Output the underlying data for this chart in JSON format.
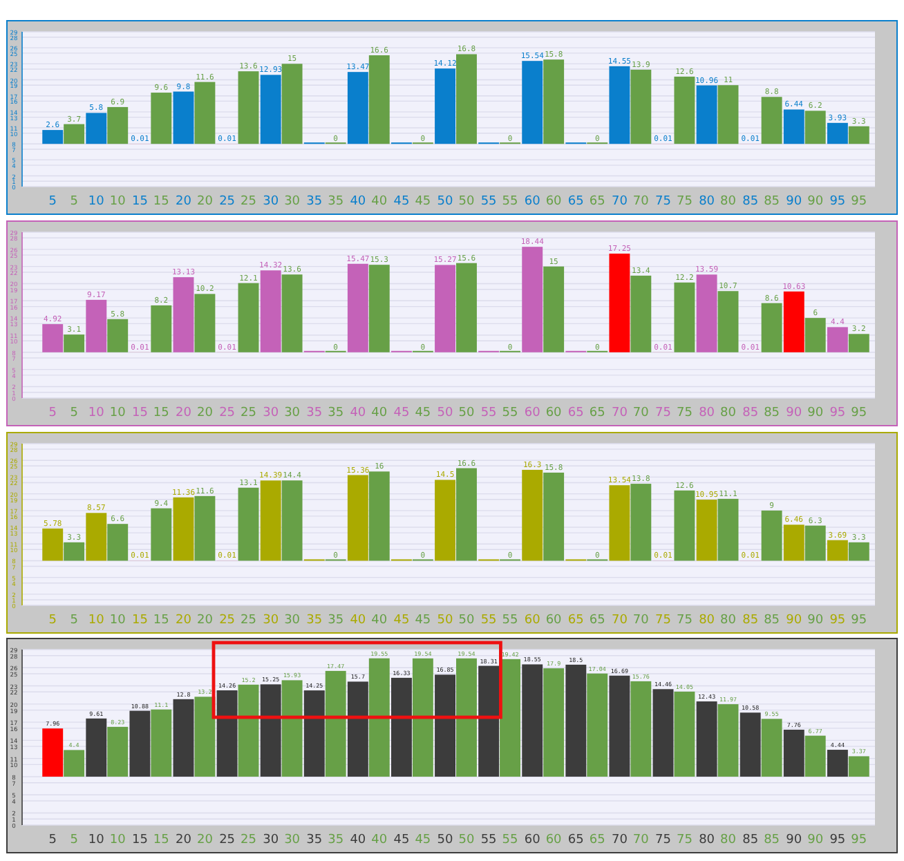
{
  "chart_data": [
    {
      "type": "bar",
      "categories": [
        "5",
        "10",
        "15",
        "20",
        "25",
        "30",
        "35",
        "40",
        "45",
        "50",
        "55",
        "60",
        "65",
        "70",
        "75",
        "80",
        "85",
        "90",
        "95"
      ],
      "ylim": [
        0,
        29
      ],
      "yticks": [
        0,
        1,
        2,
        4,
        5,
        7,
        8,
        10,
        11,
        13,
        14,
        16,
        17,
        19,
        20,
        22,
        23,
        25,
        26,
        28,
        29
      ],
      "grid": "y",
      "series": [
        {
          "color": "#0a7fcc",
          "colors": [
            "#0a7fcc",
            "#0a7fcc",
            "#ff0000",
            "#0a7fcc",
            "#ff0000",
            "#0a7fcc",
            "#0a7fcc",
            "#0a7fcc",
            "#0a7fcc",
            "#0a7fcc",
            "#0a7fcc",
            "#0a7fcc",
            "#0a7fcc",
            "#0a7fcc",
            "#ff0000",
            "#0a7fcc",
            "#ff0000",
            "#0a7fcc",
            "#0a7fcc"
          ],
          "base": [
            8,
            8,
            8,
            8,
            8,
            8,
            8,
            8,
            8,
            8,
            8,
            8,
            8,
            8,
            8,
            8,
            8,
            8,
            8
          ],
          "values": [
            2.6,
            5.8,
            0.01,
            9.8,
            0.01,
            12.93,
            0,
            13.47,
            0,
            14.12,
            0,
            15.54,
            0,
            14.55,
            0.01,
            10.96,
            0.01,
            6.44,
            3.93
          ],
          "value_labels": [
            "2.6",
            "5.8",
            "0.01",
            "9.8",
            "0.01",
            "12.93",
            null,
            "13.47",
            null,
            "14.12",
            null,
            "15.54",
            null,
            "14.55",
            "0.01",
            "10.96",
            "0.01",
            "6.44",
            "3.93"
          ]
        },
        {
          "color": "#67a047",
          "base": [
            8,
            8,
            8,
            8,
            8,
            8,
            8,
            8,
            8,
            8,
            8,
            8,
            8,
            8,
            8,
            8,
            8,
            8,
            8
          ],
          "values": [
            3.7,
            6.9,
            9.6,
            11.6,
            13.6,
            15,
            0,
            16.6,
            0,
            16.8,
            0,
            15.8,
            0,
            13.9,
            12.6,
            11,
            8.8,
            6.2,
            3.3
          ],
          "value_labels": [
            "3.7",
            "6.9",
            "9.6",
            "11.6",
            "13.6",
            "15",
            "0",
            "16.6",
            "0",
            "16.8",
            "0",
            "15.8",
            "0",
            "13.9",
            "12.6",
            "11",
            "8.8",
            "6.2",
            "3.3"
          ]
        }
      ]
    },
    {
      "type": "bar",
      "categories": [
        "5",
        "10",
        "15",
        "20",
        "25",
        "30",
        "35",
        "40",
        "45",
        "50",
        "55",
        "60",
        "65",
        "70",
        "75",
        "80",
        "85",
        "90",
        "95"
      ],
      "ylim": [
        0,
        29
      ],
      "yticks": [
        0,
        1,
        2,
        4,
        5,
        7,
        8,
        10,
        11,
        13,
        14,
        16,
        17,
        19,
        20,
        22,
        23,
        25,
        26,
        28,
        29
      ],
      "grid": "y",
      "series": [
        {
          "color": "#c462b8",
          "colors": [
            "#c462b8",
            "#c462b8",
            "#ff0000",
            "#c462b8",
            "#ff0000",
            "#c462b8",
            "#c462b8",
            "#c462b8",
            "#c462b8",
            "#c462b8",
            "#c462b8",
            "#c462b8",
            "#c462b8",
            "#ff0000",
            "#ff0000",
            "#c462b8",
            "#ff0000",
            "#ff0000",
            "#c462b8"
          ],
          "base": [
            8,
            8,
            8,
            8,
            8,
            8,
            8,
            8,
            8,
            8,
            8,
            8,
            8,
            8,
            8,
            8,
            8,
            8,
            8
          ],
          "values": [
            4.92,
            9.17,
            0.01,
            13.13,
            0.01,
            14.32,
            0,
            15.47,
            0,
            15.27,
            0,
            18.44,
            0,
            17.25,
            0.01,
            13.59,
            0.01,
            10.63,
            4.4
          ],
          "value_labels": [
            "4.92",
            "9.17",
            "0.01",
            "13.13",
            "0.01",
            "14.32",
            null,
            "15.47",
            null,
            "15.27",
            null,
            "18.44",
            null,
            "17.25",
            "0.01",
            "13.59",
            "0.01",
            "10.63",
            "4.4"
          ]
        },
        {
          "color": "#67a047",
          "base": [
            8,
            8,
            8,
            8,
            8,
            8,
            8,
            8,
            8,
            8,
            8,
            8,
            8,
            8,
            8,
            8,
            8,
            8,
            8
          ],
          "values": [
            3.1,
            5.8,
            8.2,
            10.2,
            12.1,
            13.6,
            0,
            15.3,
            0,
            15.6,
            0,
            15,
            0,
            13.4,
            12.2,
            10.7,
            8.6,
            6,
            3.2
          ],
          "value_labels": [
            "3.1",
            "5.8",
            "8.2",
            "10.2",
            "12.1",
            "13.6",
            "0",
            "15.3",
            "0",
            "15.6",
            "0",
            "15",
            "0",
            "13.4",
            "12.2",
            "10.7",
            "8.6",
            "6",
            "3.2"
          ]
        }
      ]
    },
    {
      "type": "bar",
      "categories": [
        "5",
        "10",
        "15",
        "20",
        "25",
        "30",
        "35",
        "40",
        "45",
        "50",
        "55",
        "60",
        "65",
        "70",
        "75",
        "80",
        "85",
        "90",
        "95"
      ],
      "ylim": [
        0,
        29
      ],
      "yticks": [
        0,
        1,
        2,
        4,
        5,
        7,
        8,
        10,
        11,
        13,
        14,
        16,
        17,
        19,
        20,
        22,
        23,
        25,
        26,
        28,
        29
      ],
      "grid": "y",
      "series": [
        {
          "color": "#aaaa00",
          "colors": [
            "#aaaa00",
            "#aaaa00",
            "#ff0000",
            "#aaaa00",
            "#ff0000",
            "#aaaa00",
            "#aaaa00",
            "#aaaa00",
            "#aaaa00",
            "#aaaa00",
            "#aaaa00",
            "#aaaa00",
            "#aaaa00",
            "#aaaa00",
            "#ff0000",
            "#aaaa00",
            "#ff0000",
            "#aaaa00",
            "#aaaa00"
          ],
          "base": [
            8,
            8,
            8,
            8,
            8,
            8,
            8,
            8,
            8,
            8,
            8,
            8,
            8,
            8,
            8,
            8,
            8,
            8,
            8
          ],
          "values": [
            5.78,
            8.57,
            0.01,
            11.36,
            0.01,
            14.39,
            0,
            15.36,
            0,
            14.5,
            0,
            16.3,
            0,
            13.54,
            0.01,
            10.95,
            0.01,
            6.46,
            3.69
          ],
          "value_labels": [
            "5.78",
            "8.57",
            "0.01",
            "11.36",
            "0.01",
            "14.39",
            null,
            "15.36",
            null,
            "14.5",
            null,
            "16.3",
            null,
            "13.54",
            "0.01",
            "10.95",
            "0.01",
            "6.46",
            "3.69"
          ]
        },
        {
          "color": "#67a047",
          "base": [
            8,
            8,
            8,
            8,
            8,
            8,
            8,
            8,
            8,
            8,
            8,
            8,
            8,
            8,
            8,
            8,
            8,
            8,
            8
          ],
          "values": [
            3.3,
            6.6,
            9.4,
            11.6,
            13.1,
            14.4,
            0,
            16,
            0,
            16.6,
            0,
            15.8,
            0,
            13.8,
            12.6,
            11.1,
            9,
            6.3,
            3.3
          ],
          "value_labels": [
            "3.3",
            "6.6",
            "9.4",
            "11.6",
            "13.1",
            "14.4",
            "0",
            "16",
            "0",
            "16.6",
            "0",
            "15.8",
            "0",
            "13.8",
            "12.6",
            "11.1",
            "9",
            "6.3",
            "3.3"
          ]
        }
      ]
    },
    {
      "type": "bar",
      "categories": [
        "5",
        "10",
        "15",
        "20",
        "25",
        "30",
        "35",
        "40",
        "45",
        "50",
        "55",
        "60",
        "65",
        "70",
        "75",
        "80",
        "85",
        "90",
        "95"
      ],
      "ylim": [
        0,
        29
      ],
      "yticks": [
        0,
        1,
        2,
        4,
        5,
        7,
        8,
        10,
        11,
        13,
        14,
        16,
        17,
        19,
        20,
        22,
        23,
        25,
        26,
        28,
        29
      ],
      "grid": "y",
      "data_labels": true,
      "series": [
        {
          "color": "#3c3c3c",
          "colors": [
            "#ff0000",
            "#3c3c3c",
            "#3c3c3c",
            "#3c3c3c",
            "#3c3c3c",
            "#3c3c3c",
            "#3c3c3c",
            "#3c3c3c",
            "#3c3c3c",
            "#3c3c3c",
            "#3c3c3c",
            "#3c3c3c",
            "#3c3c3c",
            "#3c3c3c",
            "#3c3c3c",
            "#3c3c3c",
            "#3c3c3c",
            "#3c3c3c",
            "#3c3c3c"
          ],
          "base": [
            8,
            8,
            8,
            8,
            8,
            8,
            8,
            8,
            8,
            8,
            8,
            8,
            8,
            8,
            8,
            8,
            8,
            8,
            8
          ],
          "values": [
            7.96,
            9.61,
            10.88,
            12.8,
            14.26,
            15.25,
            14.25,
            15.7,
            16.33,
            16.85,
            18.31,
            18.55,
            18.5,
            16.69,
            14.46,
            12.43,
            10.58,
            7.76,
            4.44
          ]
        },
        {
          "color": "#67a047",
          "base": [
            8,
            8,
            8,
            8,
            8,
            8,
            8,
            8,
            8,
            8,
            8,
            8,
            8,
            8,
            8,
            8,
            8,
            8,
            8
          ],
          "values": [
            4.4,
            8.23,
            11.1,
            13.2,
            15.2,
            15.93,
            17.47,
            19.55,
            19.54,
            19.54,
            19.42,
            17.9,
            17.04,
            15.76,
            14.05,
            11.97,
            9.55,
            6.77,
            3.37
          ]
        }
      ]
    }
  ]
}
